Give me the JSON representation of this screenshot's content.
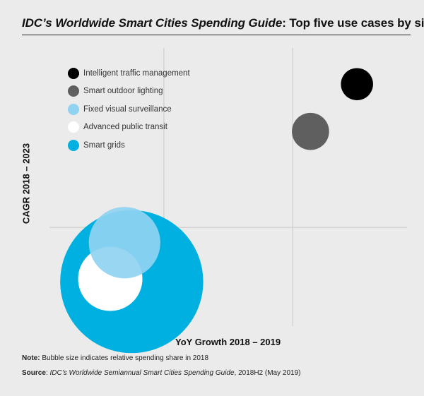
{
  "header": {
    "title_italic": "IDC’s Worldwide Smart Cities Spending Guide",
    "title_rest": ": Top five use cases by size"
  },
  "chart_data": {
    "type": "scatter",
    "subtype": "bubble",
    "title": "IDC’s Worldwide Smart Cities Spending Guide: Top five use cases by size",
    "xlabel": "YoY Growth 2018 – 2019",
    "ylabel": "CAGR 2018 – 2023",
    "legend_position": "top-left",
    "grid": true,
    "xlim": [
      0,
      100
    ],
    "ylim": [
      0,
      100
    ],
    "series": [
      {
        "name": "Smart grids",
        "color": "#00b0e0",
        "x": 23,
        "y": 16,
        "size": 20
      },
      {
        "name": "Advanced public transit",
        "color": "#ffffff",
        "x": 17,
        "y": 17,
        "size": 9
      },
      {
        "name": "Fixed visual surveillance",
        "color": "#8fd3f1",
        "alpha": 0.92,
        "x": 21,
        "y": 30,
        "size": 10
      },
      {
        "name": "Smart outdoor lighting",
        "color": "#5f5f5f",
        "x": 73,
        "y": 70,
        "size": 5.2
      },
      {
        "name": "Intelligent traffic management",
        "color": "#000000",
        "x": 86,
        "y": 87,
        "size": 4.5
      }
    ]
  },
  "legend": [
    {
      "label": "Intelligent traffic management",
      "color": "#000000"
    },
    {
      "label": "Smart outdoor lighting",
      "color": "#5f5f5f"
    },
    {
      "label": "Fixed visual surveillance",
      "color": "#8fd3f1"
    },
    {
      "label": "Advanced public transit",
      "color": "#ffffff"
    },
    {
      "label": "Smart grids",
      "color": "#00b0e0"
    }
  ],
  "footer": {
    "note_label": "Note:",
    "note_text": " Bubble size indicates relative spending share in 2018",
    "source_label": "Source",
    "source_sep": ": ",
    "source_italic": "IDC’s Worldwide Semiannual Smart Cities Spending Guide",
    "source_rest": ", 2018H2 (May 2019)"
  }
}
